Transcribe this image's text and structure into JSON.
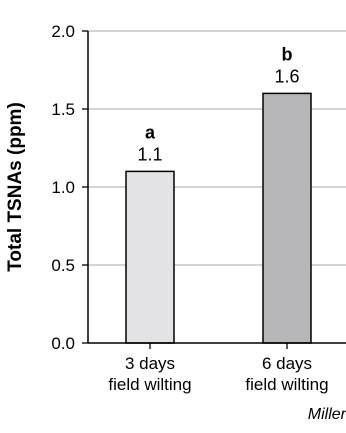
{
  "chart_data": {
    "type": "bar",
    "categories": [
      "3 days\nfield wilting",
      "6 days\nfield wilting"
    ],
    "values": [
      1.1,
      1.6
    ],
    "value_labels": [
      "1.1",
      "1.6"
    ],
    "group_letters": [
      "a",
      "b"
    ],
    "bar_colors": [
      "#e3e3e5",
      "#b7b7b9"
    ],
    "title": "",
    "xlabel": "",
    "ylabel": "Total TSNAs (ppm)",
    "ylim": [
      0,
      2.0
    ],
    "yticks": [
      "0.0",
      "0.5",
      "1.0",
      "1.5",
      "2.0"
    ],
    "grid": true
  },
  "credit": "Miller"
}
